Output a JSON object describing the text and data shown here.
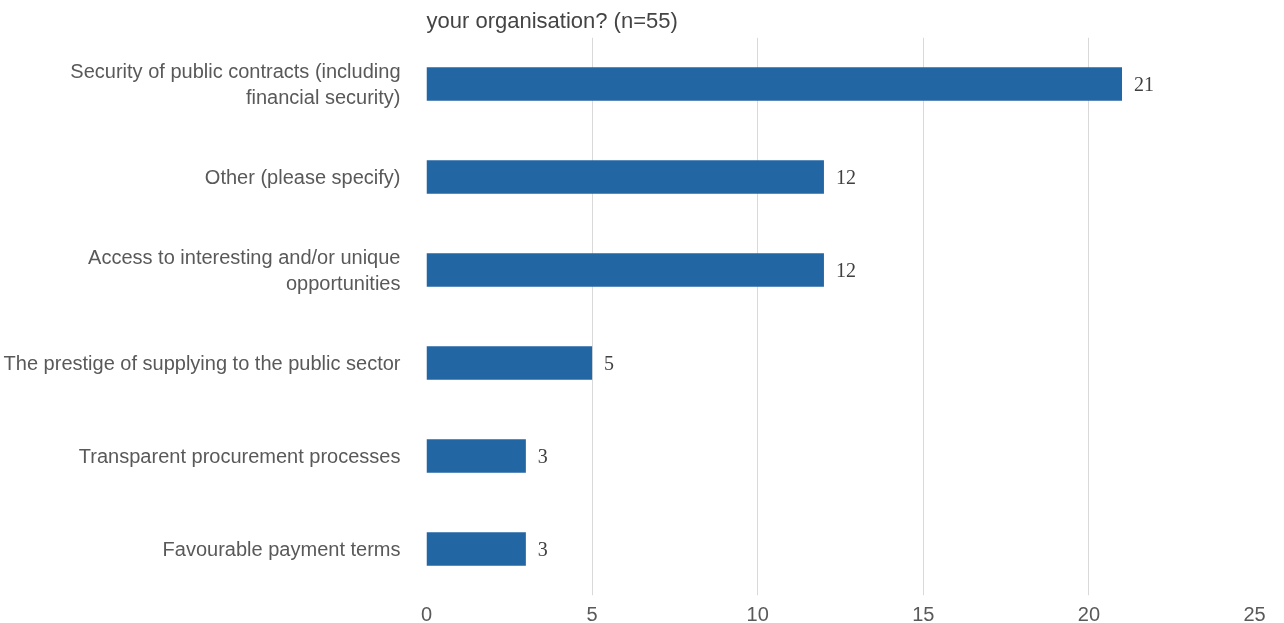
{
  "chart_data": {
    "type": "bar",
    "orientation": "horizontal",
    "title": "your organisation? (n=55)",
    "categories": [
      "Security of public contracts (including financial security)",
      "Other (please specify)",
      "Access to interesting and/or unique opportunities",
      "The prestige of supplying to the public sector",
      "Transparent procurement processes",
      "Favourable payment terms"
    ],
    "values": [
      21,
      12,
      12,
      5,
      3,
      3
    ],
    "color": "#2266a3",
    "xlim": [
      0,
      25
    ],
    "xticks": [
      0,
      5,
      10,
      15,
      20,
      25
    ],
    "grid": "x",
    "data_labels": true
  }
}
